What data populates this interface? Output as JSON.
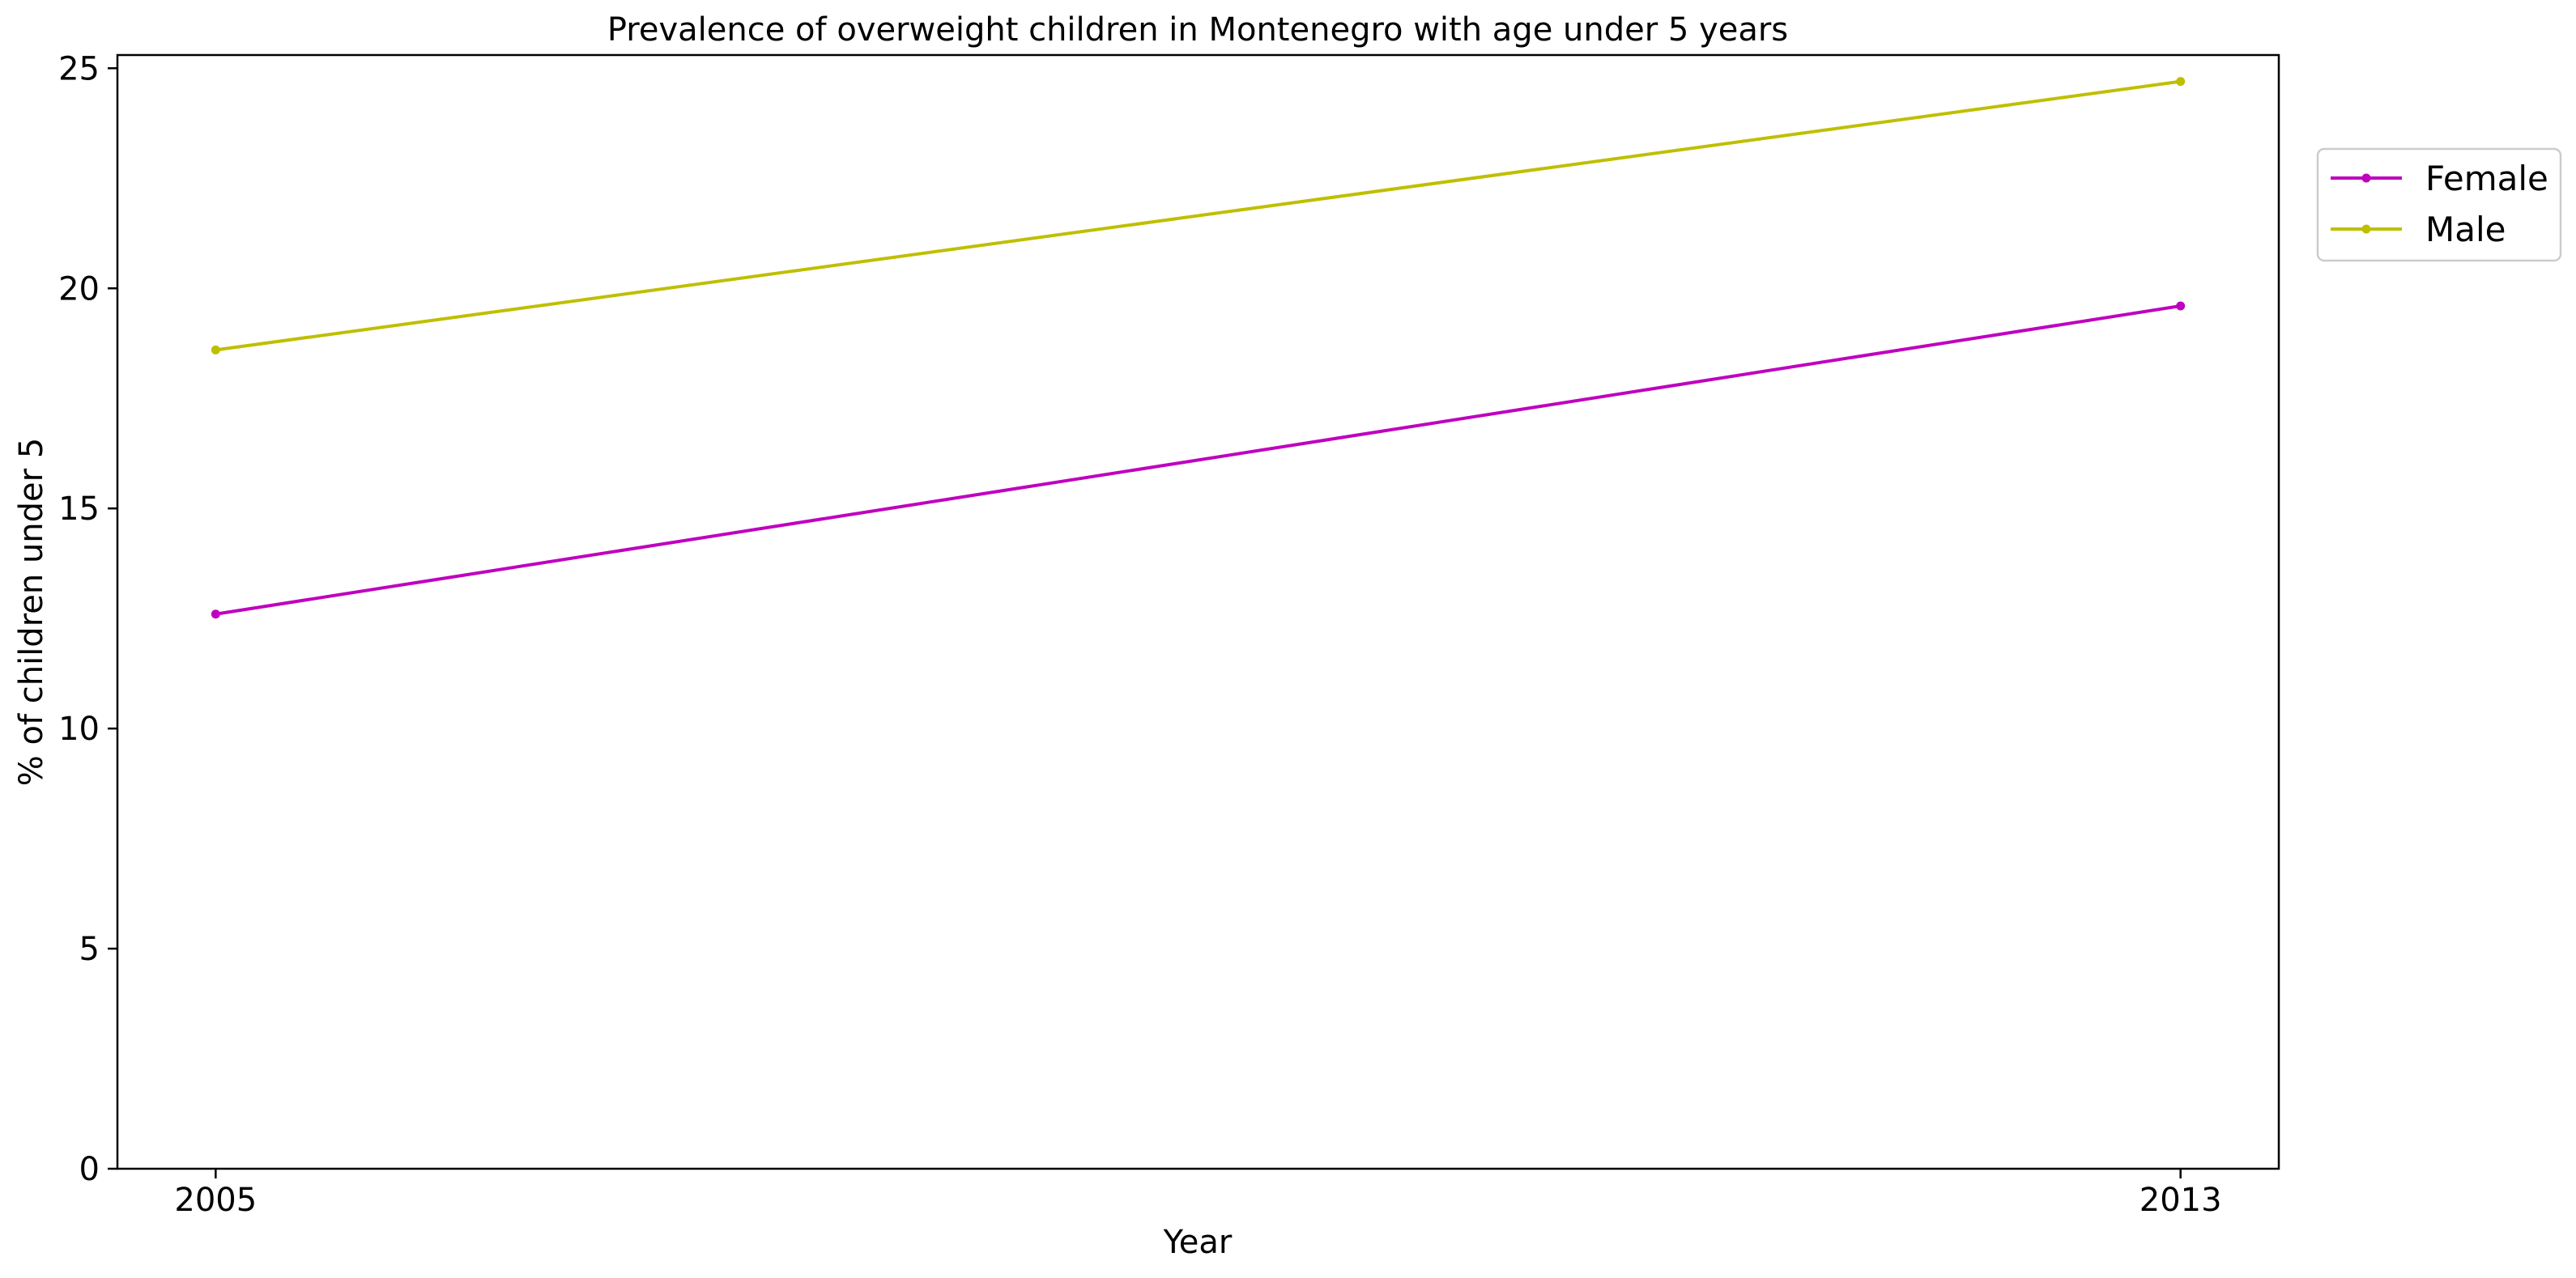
{
  "chart_data": {
    "type": "line",
    "title": "Prevalence of overweight children in Montenegro with age under 5 years",
    "xlabel": "Year",
    "ylabel": "% of children under 5",
    "x": [
      2005,
      2013
    ],
    "x_ticks": [
      "2005",
      "2013"
    ],
    "xlim": [
      2004.6,
      2013.4
    ],
    "ylim": [
      0,
      25.3
    ],
    "y_ticks": [
      "0",
      "5",
      "10",
      "15",
      "20",
      "25"
    ],
    "grid": false,
    "legend_position": "outside-top-right",
    "series": [
      {
        "name": "Female",
        "color": "#bf00bf",
        "values": [
          12.6,
          19.6
        ]
      },
      {
        "name": "Male",
        "color": "#bfbf00",
        "values": [
          18.6,
          24.7
        ]
      }
    ]
  }
}
